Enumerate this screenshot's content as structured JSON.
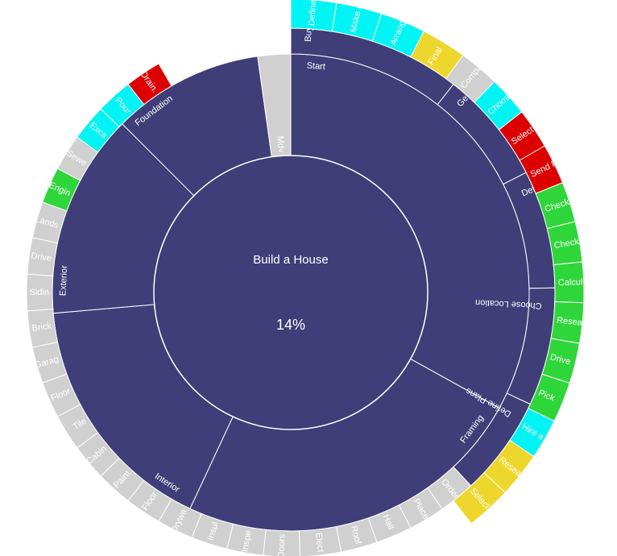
{
  "chart_data": {
    "type": "sunburst",
    "center": {
      "title": "Build a House",
      "percent": "14%"
    },
    "colors": {
      "in_progress": "#3f3e78",
      "not_started": "#d0d0d0",
      "open": "#00f4f4",
      "pending": "#eed72d",
      "done": "#2ed63a",
      "blocked": "#dd0000"
    },
    "rings": {
      "middle": [
        {
          "label": "Start",
          "start": 0,
          "end": 119,
          "status": "in_progress"
        },
        {
          "label": "Framing",
          "start": 119,
          "end": 205,
          "status": "in_progress"
        },
        {
          "label": "Interior",
          "start": 205,
          "end": 265,
          "status": "in_progress"
        },
        {
          "label": "Exterior",
          "start": 265,
          "end": 315,
          "status": "in_progress"
        },
        {
          "label": "Foundation",
          "start": 315,
          "end": 352,
          "status": "in_progress"
        },
        {
          "label": "Mdv",
          "start": 352,
          "end": 360,
          "status": "not_started"
        }
      ],
      "outer1": [
        {
          "label": "Buy Lot",
          "start": 0,
          "end": 38,
          "status": "in_progress"
        },
        {
          "label": "Get Estimates from Contra...",
          "start": 38,
          "end": 63,
          "status": "in_progress"
        },
        {
          "label": "Define Budget",
          "start": 63,
          "end": 89,
          "status": "in_progress"
        },
        {
          "label": "Choose Location",
          "start": 89,
          "end": 115,
          "status": "in_progress"
        },
        {
          "label": "Define Plans",
          "start": 115,
          "end": 137,
          "status": "in_progress"
        },
        {
          "label": "Order",
          "start": 137,
          "end": 145,
          "status": "not_started"
        },
        {
          "label": "Place",
          "start": 145,
          "end": 153,
          "status": "not_started"
        },
        {
          "label": "Hall",
          "start": 153,
          "end": 161,
          "status": "not_started"
        },
        {
          "label": "Roof",
          "start": 161,
          "end": 169,
          "status": "not_started"
        },
        {
          "label": "Elect",
          "start": 169,
          "end": 178,
          "status": "not_started"
        },
        {
          "label": "Doors",
          "start": 178,
          "end": 186,
          "status": "not_started"
        },
        {
          "label": "Inspe",
          "start": 186,
          "end": 194,
          "status": "not_started"
        },
        {
          "label": "Insul",
          "start": 194,
          "end": 202,
          "status": "not_started"
        },
        {
          "label": "Drywa",
          "start": 202,
          "end": 210,
          "status": "not_started"
        },
        {
          "label": "Floor",
          "start": 210,
          "end": 218,
          "status": "not_started"
        },
        {
          "label": "Paint",
          "start": 218,
          "end": 226,
          "status": "not_started"
        },
        {
          "label": "Cabin",
          "start": 226,
          "end": 234,
          "status": "not_started"
        },
        {
          "label": "Tile",
          "start": 234,
          "end": 242,
          "status": "not_started"
        },
        {
          "label": "Floor",
          "start": 242,
          "end": 250,
          "status": "not_started"
        },
        {
          "label": "Garag",
          "start": 250,
          "end": 258,
          "status": "not_started"
        },
        {
          "label": "Brick",
          "start": 258,
          "end": 266,
          "status": "not_started"
        },
        {
          "label": "Sidin",
          "start": 266,
          "end": 274,
          "status": "not_started"
        },
        {
          "label": "Drive",
          "start": 274,
          "end": 282,
          "status": "not_started"
        },
        {
          "label": "Lands",
          "start": 282,
          "end": 290,
          "status": "not_started"
        },
        {
          "label": "Engin",
          "start": 290,
          "end": 298,
          "status": "done"
        },
        {
          "label": "Sewe",
          "start": 298,
          "end": 306,
          "status": "not_started"
        },
        {
          "label": "Exca",
          "start": 306,
          "end": 314,
          "status": "open"
        },
        {
          "label": "Pour",
          "start": 314,
          "end": 322,
          "status": "open"
        },
        {
          "label": "Drain.",
          "start": 322,
          "end": 330,
          "status": "blocked"
        }
      ],
      "outer2": [
        {
          "label": "Define",
          "start": 0,
          "end": 9,
          "status": "open"
        },
        {
          "label": "Make a",
          "start": 9,
          "end": 18,
          "status": "open"
        },
        {
          "label": "Arrang",
          "start": 18,
          "end": 27,
          "status": "open"
        },
        {
          "label": "Final",
          "start": 27,
          "end": 36,
          "status": "pending"
        },
        {
          "label": "Compa",
          "start": 36,
          "end": 44,
          "status": "not_started"
        },
        {
          "label": "Choos",
          "start": 44,
          "end": 52,
          "status": "open"
        },
        {
          "label": "Select",
          "start": 52,
          "end": 60,
          "status": "blocked"
        },
        {
          "label": "Send P",
          "start": 60,
          "end": 68,
          "status": "blocked"
        },
        {
          "label": "Check",
          "start": 68,
          "end": 76,
          "status": "done"
        },
        {
          "label": "Check",
          "start": 76,
          "end": 84,
          "status": "done"
        },
        {
          "label": "Calcul",
          "start": 84,
          "end": 92,
          "status": "done"
        },
        {
          "label": "Resear",
          "start": 92,
          "end": 100,
          "status": "done"
        },
        {
          "label": "Drive",
          "start": 100,
          "end": 108,
          "status": "done"
        },
        {
          "label": "Pick",
          "start": 108,
          "end": 116,
          "status": "done"
        },
        {
          "label": "Hire a",
          "start": 116,
          "end": 124,
          "status": "open"
        },
        {
          "label": "Resear",
          "start": 124,
          "end": 133,
          "status": "pending"
        },
        {
          "label": "Select",
          "start": 133,
          "end": 142,
          "status": "pending"
        }
      ]
    }
  }
}
